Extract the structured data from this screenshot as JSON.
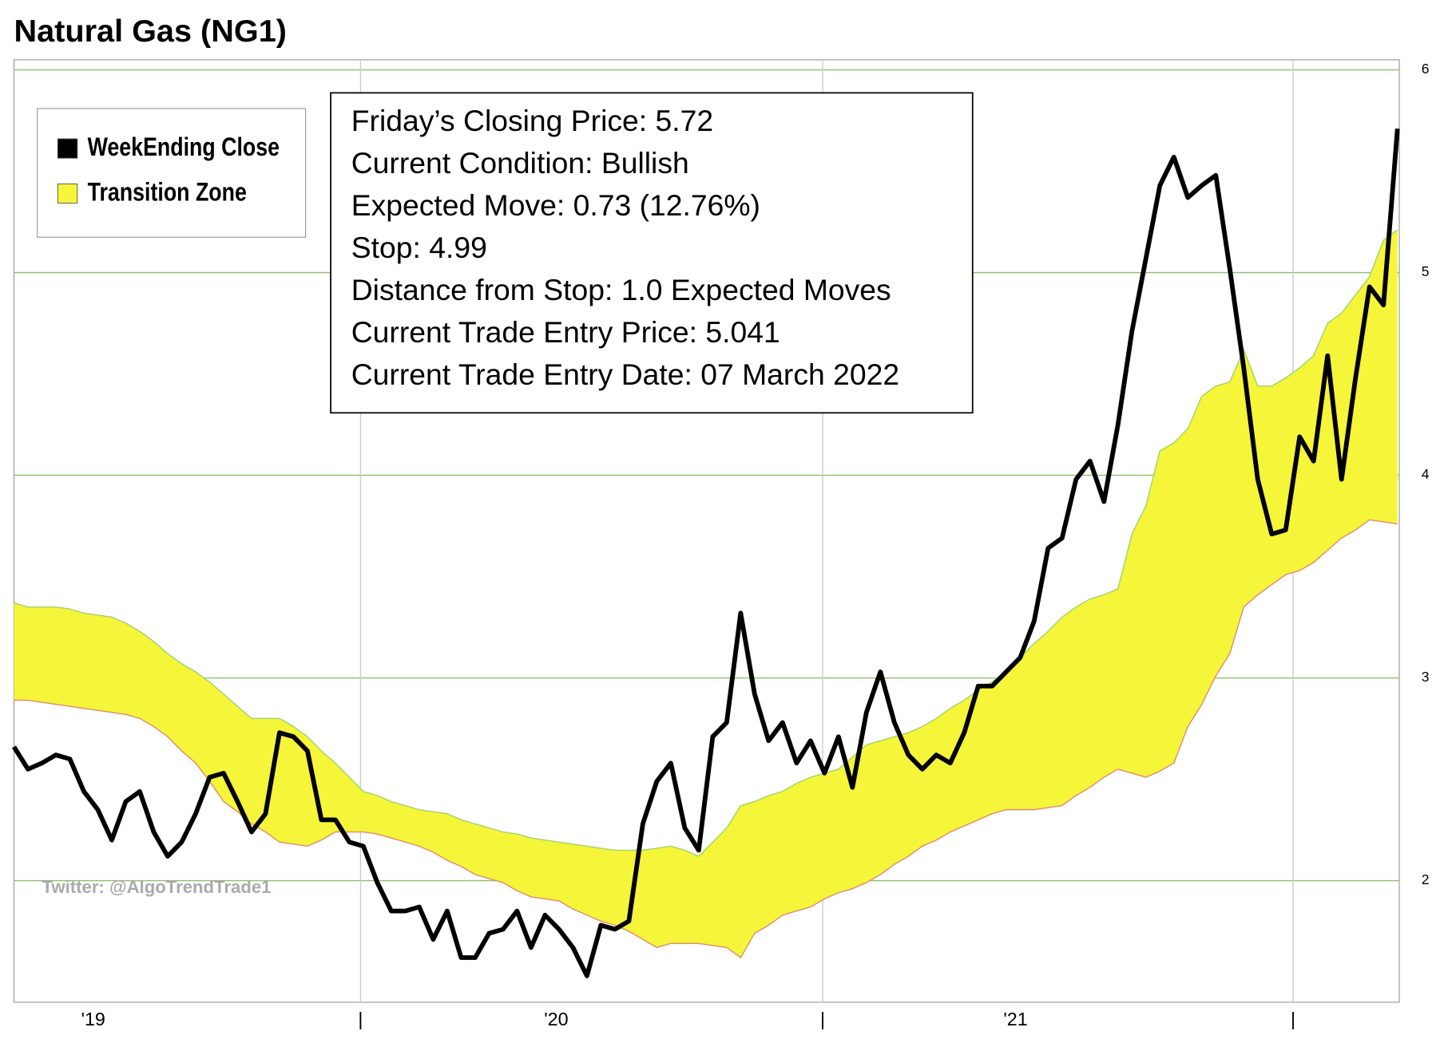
{
  "chart_data": {
    "type": "line",
    "title": "Natural Gas (NG1)",
    "watermark": "Twitter: @AlgoTrendTrade1",
    "info_box": [
      "Friday’s Closing Price: 5.72",
      "Current Condition: Bullish",
      "Expected Move: 0.73 (12.76%)",
      "Stop: 4.99",
      "Distance from Stop: 1.0 Expected Moves",
      "Current Trade Entry Price: 5.041",
      "Current Trade Entry Date: 07 March 2022"
    ],
    "xlim": [
      0,
      99.13
    ],
    "xticks": [
      {
        "value": 24.8,
        "label": "|"
      },
      {
        "value": 57.87,
        "label": "|"
      },
      {
        "value": 91.53,
        "label": "|"
      }
    ],
    "xlabels": [
      {
        "value": 5.67,
        "label": "'19"
      },
      {
        "value": 38.8,
        "label": "'20"
      },
      {
        "value": 71.67,
        "label": "'21"
      }
    ],
    "ylim": [
      1.4,
      6.05
    ],
    "yticks": [
      2,
      3,
      4,
      5,
      6
    ],
    "grid": true,
    "legend": "upper left",
    "series": [
      {
        "name": "WeekEnding Close",
        "color": "#000000",
        "values": [
          2.66,
          2.55,
          2.58,
          2.62,
          2.6,
          2.44,
          2.35,
          2.2,
          2.39,
          2.44,
          2.24,
          2.12,
          2.19,
          2.33,
          2.51,
          2.53,
          2.39,
          2.24,
          2.33,
          2.73,
          2.71,
          2.64,
          2.3,
          2.3,
          2.19,
          2.17,
          1.99,
          1.85,
          1.85,
          1.87,
          1.71,
          1.85,
          1.62,
          1.62,
          1.74,
          1.76,
          1.85,
          1.67,
          1.83,
          1.76,
          1.67,
          1.53,
          1.78,
          1.76,
          1.8,
          2.28,
          2.49,
          2.58,
          2.26,
          2.15,
          2.71,
          2.78,
          3.32,
          2.92,
          2.69,
          2.78,
          2.58,
          2.69,
          2.53,
          2.71,
          2.46,
          2.83,
          3.03,
          2.78,
          2.62,
          2.55,
          2.62,
          2.58,
          2.73,
          2.96,
          2.96,
          3.03,
          3.1,
          3.28,
          3.64,
          3.69,
          3.98,
          4.07,
          3.87,
          4.25,
          4.71,
          5.07,
          5.43,
          5.57,
          5.37,
          5.43,
          5.48,
          5.02,
          4.53,
          3.98,
          3.71,
          3.73,
          4.19,
          4.07,
          4.59,
          3.98,
          4.48,
          4.93,
          4.84,
          5.71
        ]
      },
      {
        "name": "Transition Zone",
        "color": "#f5f53a",
        "upper": [
          3.37,
          3.35,
          3.35,
          3.35,
          3.34,
          3.32,
          3.31,
          3.3,
          3.27,
          3.23,
          3.18,
          3.12,
          3.07,
          3.03,
          2.98,
          2.92,
          2.86,
          2.8,
          2.8,
          2.8,
          2.76,
          2.71,
          2.64,
          2.58,
          2.51,
          2.44,
          2.42,
          2.39,
          2.37,
          2.35,
          2.34,
          2.33,
          2.3,
          2.28,
          2.26,
          2.24,
          2.23,
          2.21,
          2.2,
          2.19,
          2.18,
          2.17,
          2.16,
          2.15,
          2.15,
          2.15,
          2.16,
          2.17,
          2.15,
          2.12,
          2.19,
          2.26,
          2.37,
          2.39,
          2.42,
          2.44,
          2.48,
          2.51,
          2.53,
          2.55,
          2.61,
          2.67,
          2.69,
          2.71,
          2.73,
          2.76,
          2.8,
          2.85,
          2.89,
          2.94,
          2.98,
          3.03,
          3.1,
          3.17,
          3.23,
          3.3,
          3.35,
          3.39,
          3.41,
          3.44,
          3.71,
          3.85,
          4.12,
          4.16,
          4.23,
          4.39,
          4.44,
          4.46,
          4.62,
          4.44,
          4.44,
          4.48,
          4.53,
          4.59,
          4.75,
          4.8,
          4.89,
          4.98,
          5.16,
          5.21
        ],
        "lower": [
          2.89,
          2.89,
          2.88,
          2.87,
          2.86,
          2.85,
          2.84,
          2.83,
          2.82,
          2.8,
          2.76,
          2.71,
          2.64,
          2.58,
          2.49,
          2.39,
          2.34,
          2.28,
          2.24,
          2.19,
          2.18,
          2.17,
          2.2,
          2.24,
          2.24,
          2.24,
          2.23,
          2.21,
          2.19,
          2.17,
          2.14,
          2.1,
          2.07,
          2.03,
          2.01,
          1.99,
          1.95,
          1.92,
          1.91,
          1.9,
          1.86,
          1.83,
          1.8,
          1.78,
          1.75,
          1.71,
          1.67,
          1.69,
          1.69,
          1.69,
          1.68,
          1.67,
          1.62,
          1.74,
          1.78,
          1.83,
          1.85,
          1.87,
          1.91,
          1.94,
          1.96,
          1.99,
          2.03,
          2.08,
          2.12,
          2.17,
          2.2,
          2.24,
          2.27,
          2.3,
          2.33,
          2.35,
          2.35,
          2.35,
          2.36,
          2.37,
          2.42,
          2.46,
          2.51,
          2.55,
          2.53,
          2.51,
          2.54,
          2.58,
          2.76,
          2.87,
          3.01,
          3.12,
          3.35,
          3.41,
          3.46,
          3.51,
          3.53,
          3.57,
          3.63,
          3.69,
          3.73,
          3.78,
          3.77,
          3.76
        ]
      }
    ]
  }
}
